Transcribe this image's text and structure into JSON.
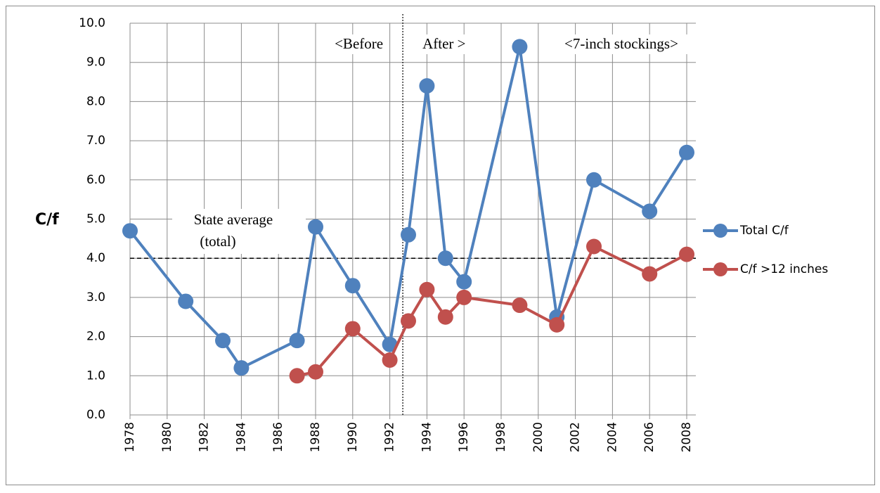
{
  "chart_data": {
    "type": "line",
    "y_label": "C/f",
    "xlim": [
      1978,
      2008
    ],
    "xticks": [
      1978,
      1980,
      1982,
      1984,
      1986,
      1988,
      1990,
      1992,
      1994,
      1996,
      1998,
      2000,
      2002,
      2004,
      2006,
      2008
    ],
    "ylim": [
      0,
      10
    ],
    "yticks": [
      {
        "value": 0,
        "label": "0.0"
      },
      {
        "value": 1,
        "label": "1.0"
      },
      {
        "value": 2,
        "label": "2.0"
      },
      {
        "value": 3,
        "label": "3.0"
      },
      {
        "value": 4,
        "label": "4.0"
      },
      {
        "value": 5,
        "label": "5.0"
      },
      {
        "value": 6,
        "label": "6.0"
      },
      {
        "value": 7,
        "label": "7.0"
      },
      {
        "value": 8,
        "label": "8.0"
      },
      {
        "value": 9,
        "label": "9.0"
      },
      {
        "value": 10,
        "label": "10.0"
      }
    ],
    "grid": true,
    "legend": "right",
    "series": [
      {
        "name": "Total C/f",
        "color": "#4f81bd",
        "x": [
          1978,
          1981,
          1983,
          1984,
          1987,
          1988,
          1990,
          1992,
          1993,
          1994,
          1995,
          1996,
          1999,
          2001,
          2003,
          2006,
          2008
        ],
        "values": [
          4.7,
          2.9,
          1.9,
          1.2,
          1.9,
          4.8,
          3.3,
          1.8,
          4.6,
          8.4,
          4.0,
          3.4,
          9.4,
          2.5,
          6.0,
          5.2,
          6.7
        ]
      },
      {
        "name": "C/f >12 inches",
        "color": "#c0504d",
        "x": [
          1987,
          1988,
          1990,
          1992,
          1993,
          1994,
          1995,
          1996,
          1999,
          2001,
          2003,
          2006,
          2008
        ],
        "values": [
          1.0,
          1.1,
          2.2,
          1.4,
          2.4,
          3.2,
          2.5,
          3.0,
          2.8,
          2.3,
          4.3,
          3.6,
          4.1
        ]
      }
    ],
    "hline": {
      "value": 4.0,
      "label": [
        "State average",
        "(total)"
      ]
    },
    "vline": {
      "value": 1992.7,
      "labels": [
        "<Before",
        "After >"
      ]
    },
    "annotation": "<7-inch stockings>"
  }
}
